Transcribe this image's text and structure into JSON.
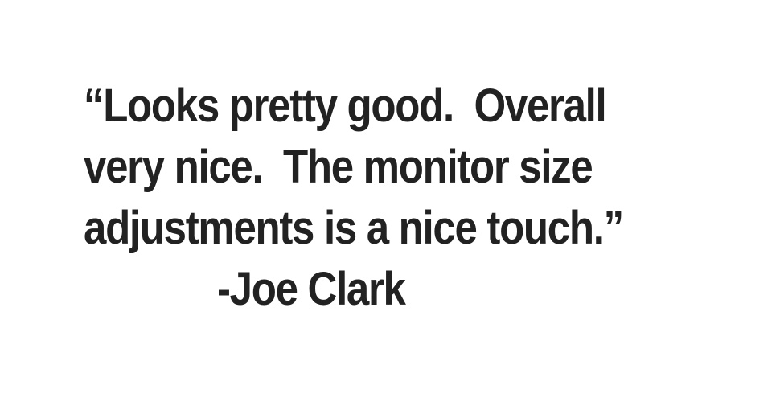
{
  "quote": {
    "lines": [
      "“Looks pretty good.  Overall",
      "very nice.  The monitor size",
      "adjustments is a nice touch.”"
    ],
    "attribution": "-Joe Clark"
  },
  "colors": {
    "text": "#222222",
    "background": "#ffffff"
  }
}
